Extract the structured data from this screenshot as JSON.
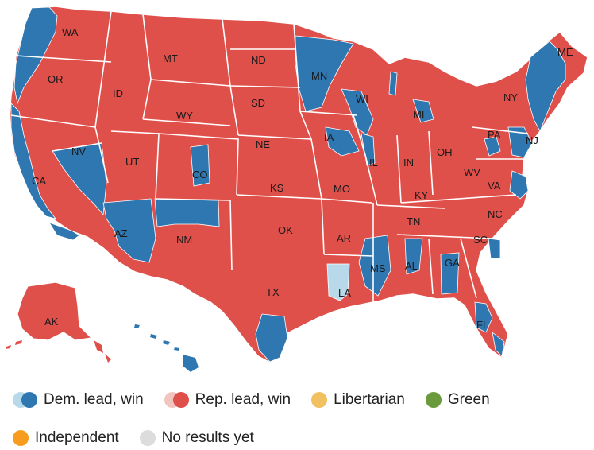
{
  "colors": {
    "dem_lead": "#b7d9ea",
    "dem_win": "#2f77b1",
    "rep_lead": "#f2c4c0",
    "rep_win": "#e0504b",
    "libertarian": "#f0c061",
    "green": "#6a9a3c",
    "independent": "#f79c1e",
    "no_results": "#dcdcdc",
    "border": "#ffffff"
  },
  "state_labels": {
    "wa": "WA",
    "or": "OR",
    "ca": "CA",
    "nv": "NV",
    "id": "ID",
    "mt": "MT",
    "wy": "WY",
    "ut": "UT",
    "az": "AZ",
    "co": "CO",
    "nm": "NM",
    "nd": "ND",
    "sd": "SD",
    "ne": "NE",
    "ks": "KS",
    "ok": "OK",
    "tx": "TX",
    "mn": "MN",
    "ia": "IA",
    "mo": "MO",
    "ar": "AR",
    "la": "LA",
    "wi": "WI",
    "il": "IL",
    "ms": "MS",
    "mi": "MI",
    "in": "IN",
    "ky": "KY",
    "tn": "TN",
    "al": "AL",
    "oh": "OH",
    "ga": "GA",
    "fl": "FL",
    "sc": "SC",
    "nc": "NC",
    "va": "VA",
    "wv": "WV",
    "pa": "PA",
    "ny": "NY",
    "nj": "NJ",
    "me": "ME",
    "ak": "AK"
  },
  "legend": {
    "dem": "Dem. lead, win",
    "rep": "Rep. lead, win",
    "libertarian": "Libertarian",
    "green": "Green",
    "independent": "Independent",
    "no_results": "No results yet"
  }
}
